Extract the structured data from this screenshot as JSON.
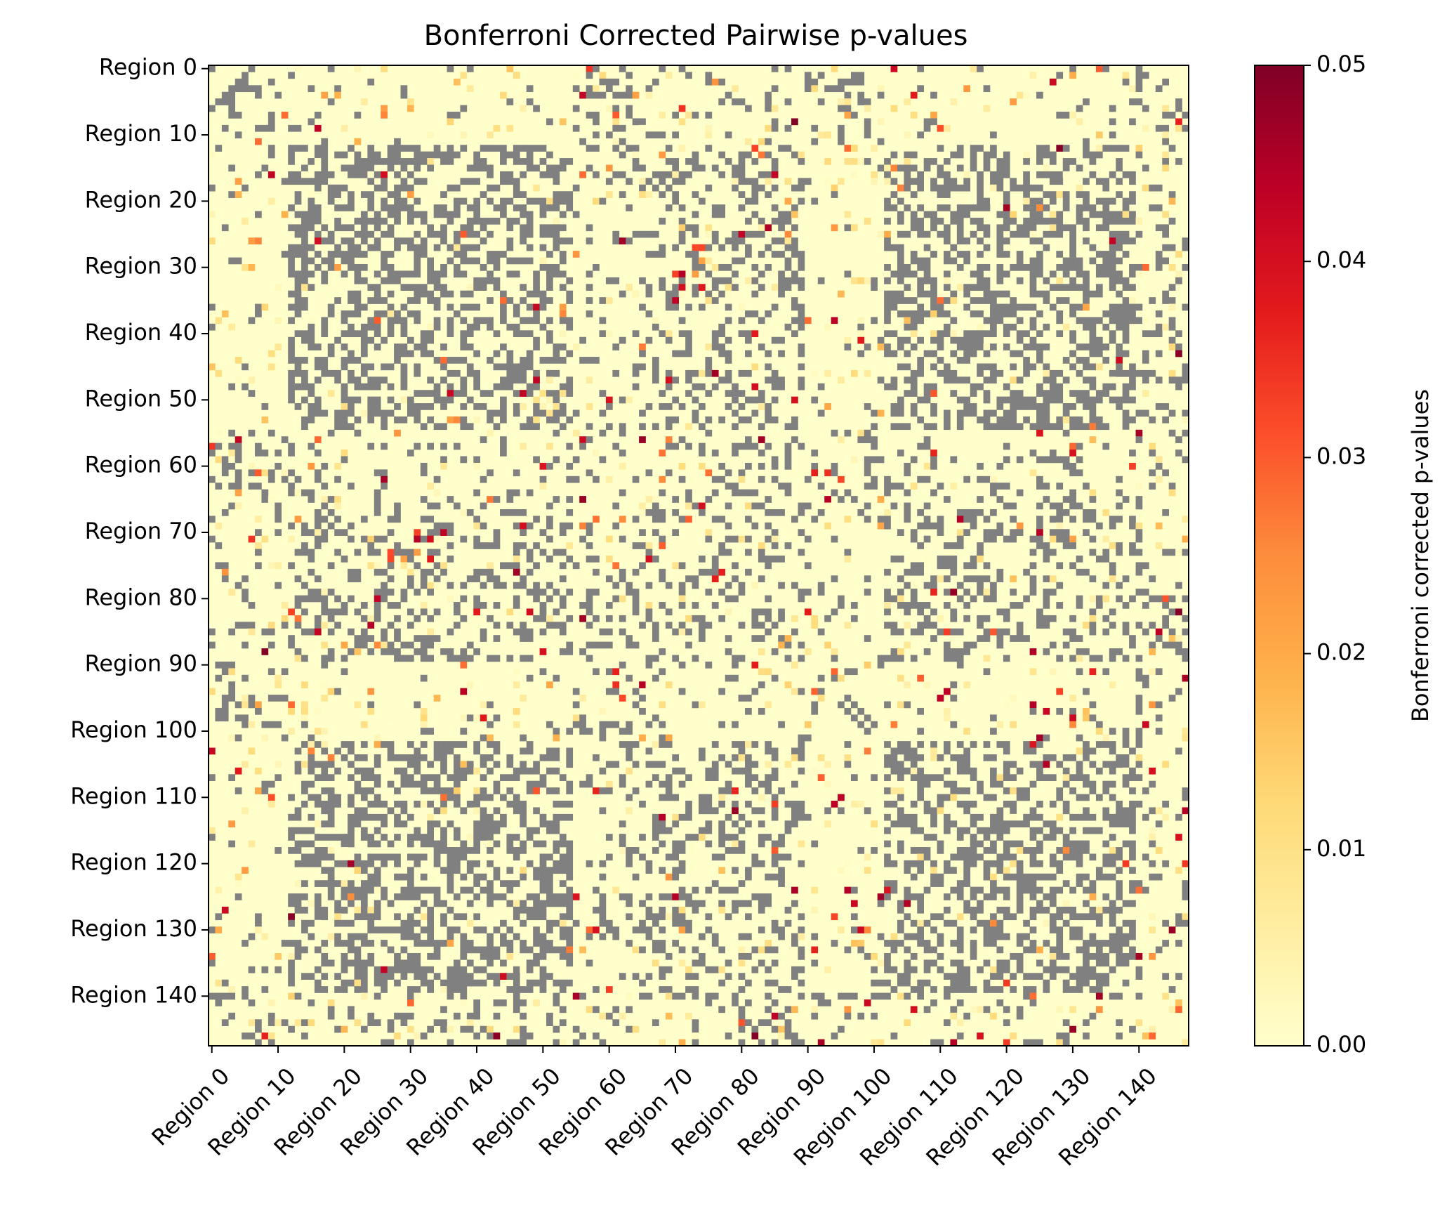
{
  "chart_data": {
    "type": "heatmap",
    "title": "Bonferroni Corrected Pairwise p-values",
    "xlabel": "",
    "ylabel": "",
    "n_regions": 148,
    "tick_step": 10,
    "x_tick_labels": [
      "Region 0",
      "Region 10",
      "Region 20",
      "Region 30",
      "Region 40",
      "Region 50",
      "Region 60",
      "Region 70",
      "Region 80",
      "Region 90",
      "Region 100",
      "Region 110",
      "Region 120",
      "Region 130",
      "Region 140"
    ],
    "y_tick_labels": [
      "Region 0",
      "Region 10",
      "Region 20",
      "Region 30",
      "Region 40",
      "Region 50",
      "Region 60",
      "Region 70",
      "Region 80",
      "Region 90",
      "Region 100",
      "Region 110",
      "Region 120",
      "Region 130",
      "Region 140"
    ],
    "colorbar": {
      "label": "Bonferroni corrected p-values",
      "vmin": 0.0,
      "vmax": 0.05,
      "ticks": [
        "0.00",
        "0.01",
        "0.02",
        "0.03",
        "0.04",
        "0.05"
      ],
      "colormap": "YlOrRd",
      "stops": [
        "#ffffcc",
        "#ffeda0",
        "#fed976",
        "#feb24c",
        "#fd8d3c",
        "#fc4e2a",
        "#e31a1c",
        "#bd0026",
        "#800026"
      ]
    },
    "masked_color": "#808080",
    "masked_meaning": "p-value not significant (masked, shown gray)",
    "notes": "148x148 symmetric matrix of corrected p-values; cells below 0.05 are colored, remaining cells are masked gray. Values near 0 (pale yellow) dominate; scattered cells approach 0.05 (dark red)."
  }
}
